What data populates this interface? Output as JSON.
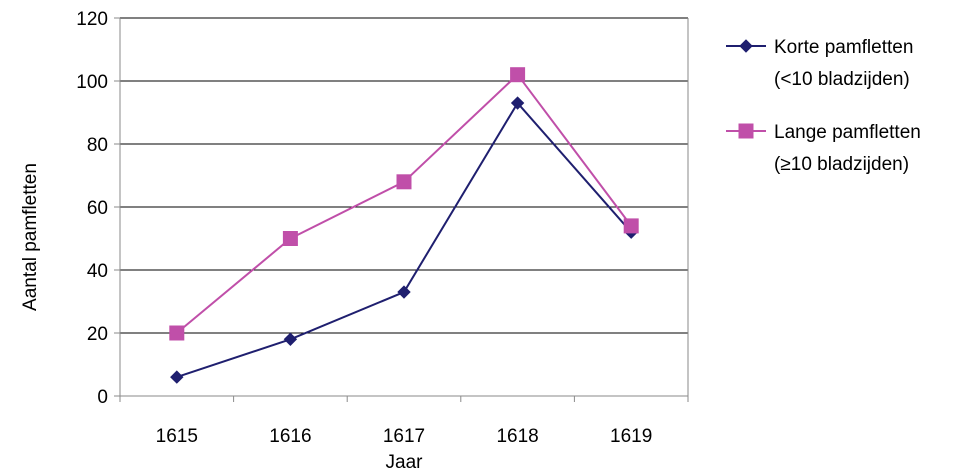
{
  "chart_data": {
    "type": "line",
    "x": [
      "1615",
      "1616",
      "1617",
      "1618",
      "1619"
    ],
    "xlabel": "Jaar",
    "ylabel": "Aantal pamfletten",
    "ylim": [
      0,
      120
    ],
    "yticks": [
      0,
      20,
      40,
      60,
      80,
      100,
      120
    ],
    "grid": true,
    "legend_position": "right",
    "series": [
      {
        "name_lines": [
          "Korte pamfletten",
          "(<10 bladzijden)"
        ],
        "values": [
          6,
          18,
          33,
          93,
          52
        ],
        "color": "#1f1f6f",
        "marker": "diamond"
      },
      {
        "name_lines": [
          "Lange pamfletten",
          "(≥10 bladzijden)"
        ],
        "values": [
          20,
          50,
          68,
          102,
          54
        ],
        "color": "#c04fa9",
        "marker": "square"
      }
    ]
  }
}
